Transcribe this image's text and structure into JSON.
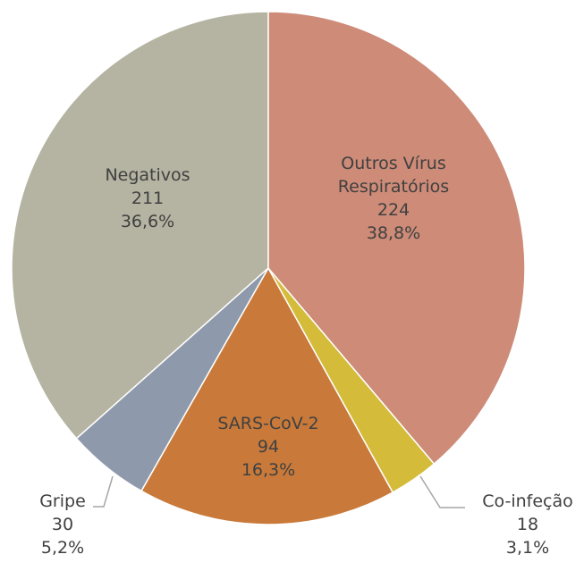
{
  "chart_data": {
    "type": "pie",
    "categories": [
      "Outros Vírus Respiratórios",
      "Co-infeção",
      "SARS-CoV-2",
      "Gripe",
      "Negativos"
    ],
    "values": [
      224,
      18,
      94,
      30,
      211
    ],
    "percentages": [
      38.8,
      3.1,
      16.3,
      5.2,
      36.6
    ],
    "percentage_labels": [
      "38,8%",
      "3,1%",
      "16,3%",
      "5,2%",
      "36,6%"
    ],
    "colors": [
      "#cd8b78",
      "#d4bc3a",
      "#c97a3a",
      "#8e9aab",
      "#b5b3a1"
    ]
  }
}
